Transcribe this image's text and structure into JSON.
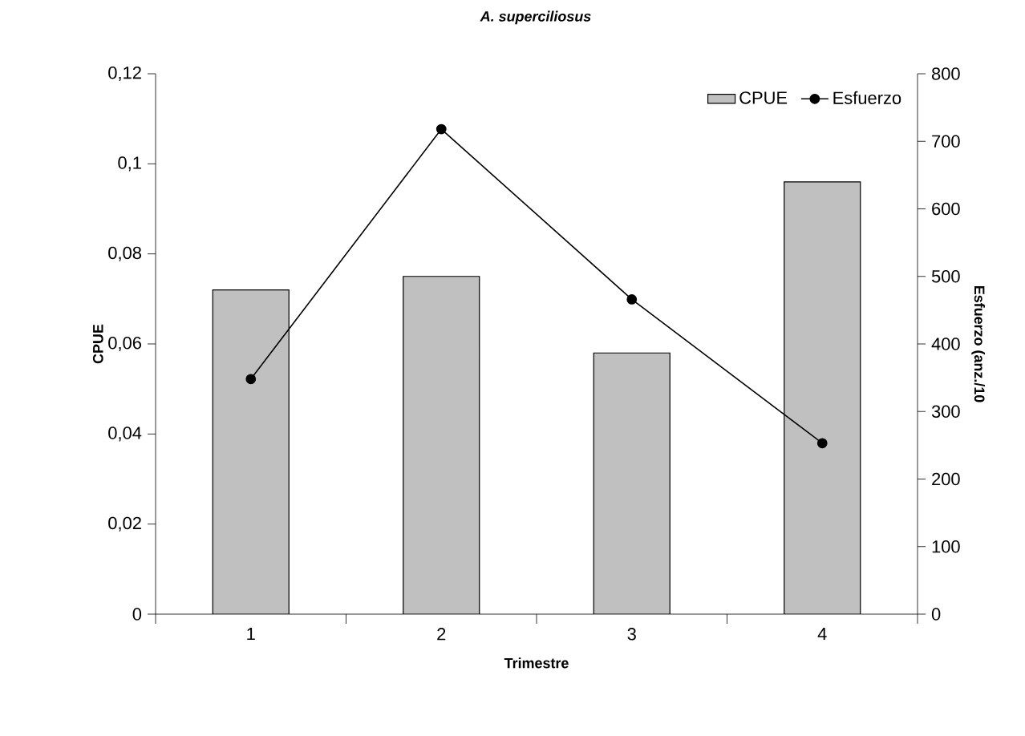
{
  "chart_data": {
    "type": "bar",
    "title": "A. superciliosus",
    "xlabel": "Trimestre",
    "ylabel": "CPUE",
    "y2label": "Esfuerzo (anz./10",
    "categories": [
      "1",
      "2",
      "3",
      "4"
    ],
    "series": [
      {
        "name": "CPUE",
        "color": "#c0c0c0",
        "values": [
          0.072,
          0.075,
          0.058,
          0.096
        ]
      },
      {
        "name": "Esfuerzo",
        "type": "line",
        "axis": "y2",
        "color": "#000000",
        "marker": "circle",
        "values": [
          348,
          718,
          466,
          253
        ]
      }
    ],
    "ylim": [
      0,
      0.12
    ],
    "yticks": [
      0,
      {
        "value": 0.02,
        "label": "0,02"
      },
      {
        "value": 0.04,
        "label": "0,04"
      },
      {
        "value": 0.06,
        "label": "0,06"
      },
      {
        "value": 0.08,
        "label": "0,08"
      },
      {
        "value": 0.1,
        "label": "0,1"
      },
      {
        "value": 0.12,
        "label": "0,12"
      }
    ],
    "y2lim": [
      0,
      800
    ],
    "y2ticks": [
      0,
      100,
      200,
      300,
      400,
      500,
      600,
      700,
      800
    ],
    "grid": false,
    "legend": "top right"
  }
}
